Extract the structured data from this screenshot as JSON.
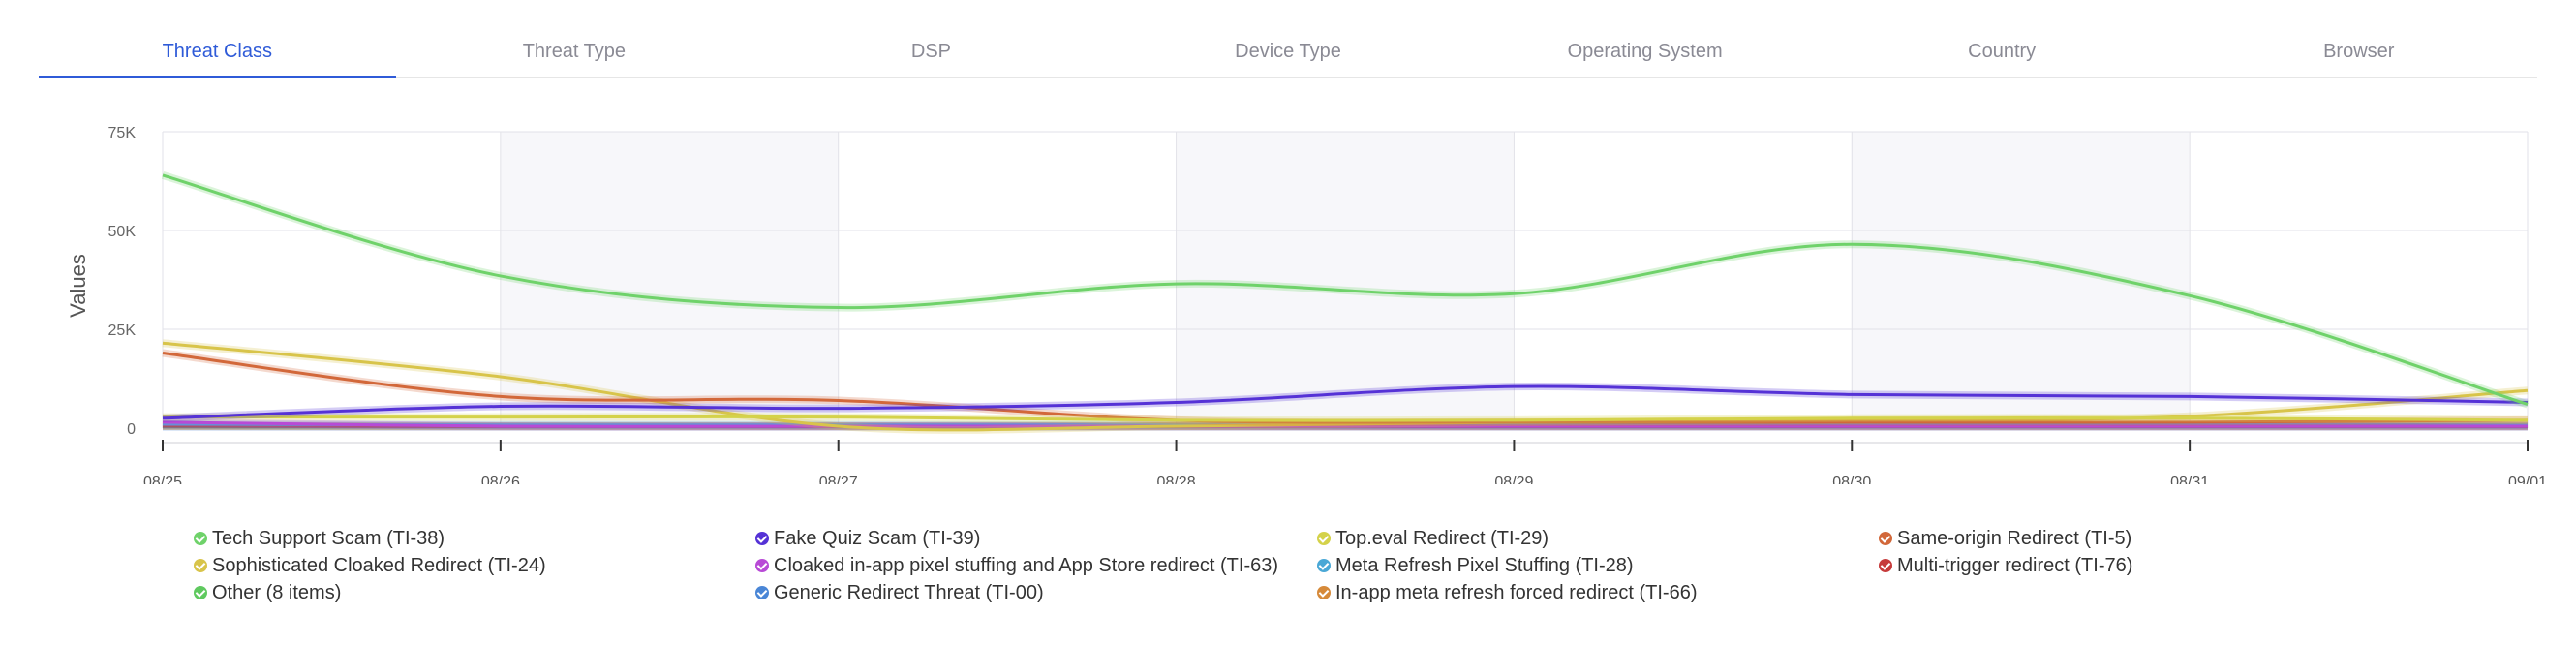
{
  "tabs": [
    {
      "label": "Threat Class",
      "active": true
    },
    {
      "label": "Threat Type",
      "active": false
    },
    {
      "label": "DSP",
      "active": false
    },
    {
      "label": "Device Type",
      "active": false
    },
    {
      "label": "Operating System",
      "active": false
    },
    {
      "label": "Country",
      "active": false
    },
    {
      "label": "Browser",
      "active": false
    }
  ],
  "chart_data": {
    "type": "line",
    "title": "",
    "xlabel": "",
    "ylabel": "Values",
    "x": [
      "08/25",
      "08/26",
      "08/27",
      "08/28",
      "08/29",
      "08/30",
      "08/31",
      "09/01"
    ],
    "yticks": [
      "0",
      "25K",
      "50K",
      "75K"
    ],
    "ylim": [
      0,
      75000
    ],
    "grid": true,
    "legend_position": "bottom",
    "series": [
      {
        "name": "Tech Support Scam (TI-38)",
        "color": "#6fd26a",
        "values": [
          64000,
          38500,
          30500,
          36500,
          34000,
          46500,
          33500,
          6000
        ]
      },
      {
        "name": "Fake Quiz Scam (TI-39)",
        "color": "#5532d6",
        "values": [
          2500,
          5500,
          5000,
          6500,
          10500,
          8500,
          8000,
          6500
        ]
      },
      {
        "name": "Top.eval Redirect (TI-29)",
        "color": "#d4d24a",
        "values": [
          2800,
          2800,
          2800,
          2000,
          2000,
          2500,
          2500,
          2000
        ]
      },
      {
        "name": "Same-origin Redirect (TI-5)",
        "color": "#d2683a",
        "values": [
          19000,
          8000,
          7000,
          2000,
          1500,
          1500,
          1500,
          2000
        ]
      },
      {
        "name": "Sophisticated Cloaked Redirect (TI-24)",
        "color": "#d8c44a",
        "values": [
          21500,
          13000,
          500,
          500,
          1500,
          2000,
          3000,
          9500
        ]
      },
      {
        "name": "Cloaked in-app pixel stuffing and App Store redirect (TI-63)",
        "color": "#b84ad6",
        "values": [
          1500,
          500,
          500,
          500,
          500,
          500,
          500,
          500
        ]
      },
      {
        "name": "Meta Refresh Pixel Stuffing (TI-28)",
        "color": "#4aa8d6",
        "values": [
          1000,
          800,
          800,
          800,
          800,
          800,
          800,
          800
        ]
      },
      {
        "name": "Multi-trigger redirect (TI-76)",
        "color": "#c63a3a",
        "values": [
          500,
          400,
          400,
          400,
          400,
          400,
          400,
          400
        ]
      },
      {
        "name": "Other (8 items)",
        "color": "#5fc95f",
        "values": [
          500,
          500,
          500,
          500,
          500,
          500,
          500,
          500
        ]
      },
      {
        "name": "Generic Redirect Threat (TI-00)",
        "color": "#4a86d6",
        "values": [
          300,
          300,
          300,
          300,
          300,
          300,
          300,
          300
        ]
      },
      {
        "name": "In-app meta refresh forced redirect (TI-66)",
        "color": "#d68a3a",
        "values": [
          800,
          600,
          600,
          600,
          600,
          600,
          600,
          600
        ]
      }
    ]
  }
}
